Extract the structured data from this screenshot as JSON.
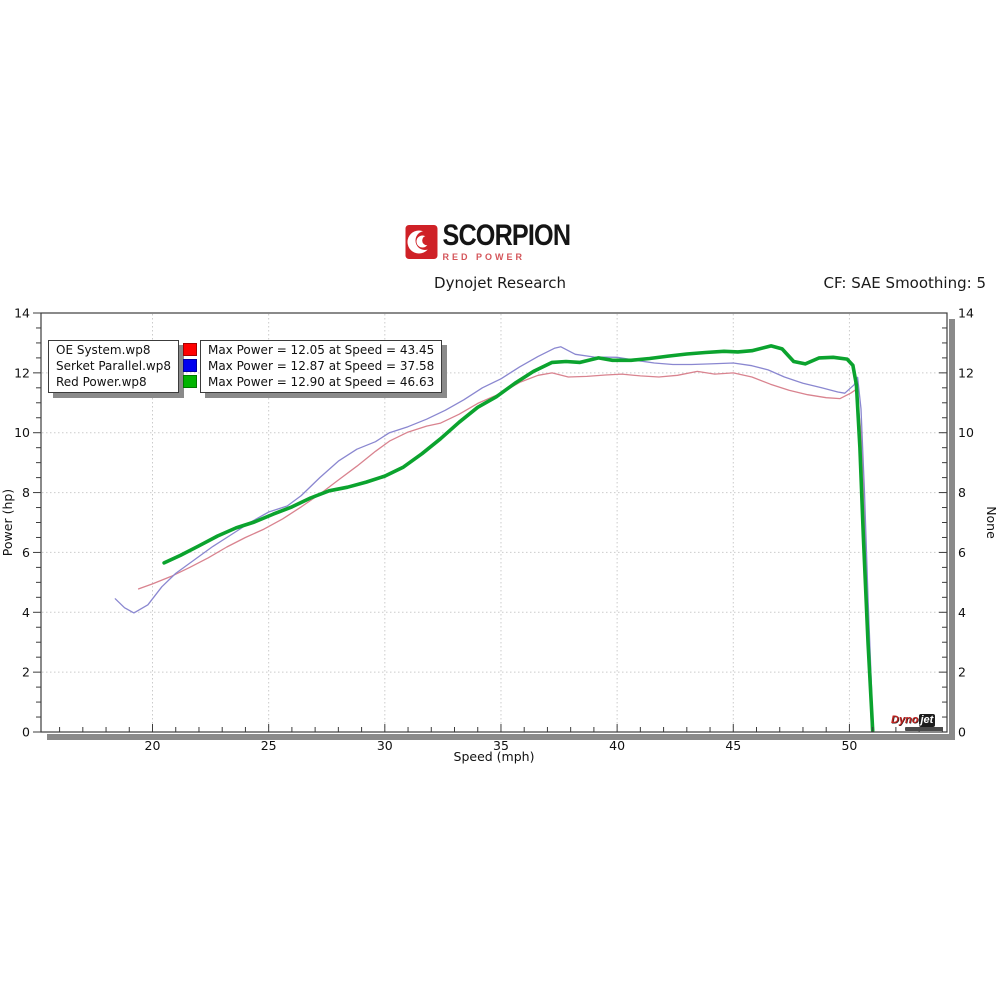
{
  "header": {
    "brand": {
      "name": "SCORPION",
      "tagline": "RED POWER",
      "brand_color": "#cf2127"
    },
    "subtitle": "Dynojet Research",
    "cf_label": "CF: SAE Smoothing: 5"
  },
  "watermark": {
    "part1": "Dyno",
    "part2": "jet"
  },
  "chart_data": {
    "type": "line",
    "title": "",
    "xlabel": "Speed (mph)",
    "ylabel_left": "Power (hp)",
    "ylabel_right": "None",
    "xlim": [
      15.2,
      54.2
    ],
    "ylim": [
      0,
      14
    ],
    "x_ticks_major": [
      20,
      25,
      30,
      35,
      40,
      45,
      50
    ],
    "x_minor_step": 1,
    "y_ticks_major": [
      0,
      2,
      4,
      6,
      8,
      10,
      12,
      14
    ],
    "y_minor_step": 0.5,
    "grid": "dotted",
    "legend_position": "top-left",
    "colors": {
      "grid": "#cbcbcb",
      "border": "#3c3c3c",
      "shadow": "#8a8a8a",
      "tick": "#3c3c3c",
      "label": "#111111"
    },
    "series": [
      {
        "name": "OE System.wp8",
        "swatch_color": "#ff0000",
        "line_color": "#d9838f",
        "line_width": 1.3,
        "max_label": "Max Power = 12.05 at Speed = 43.45",
        "max_power": 12.05,
        "max_speed": 43.45,
        "points": [
          [
            19.4,
            4.78
          ],
          [
            20.0,
            4.95
          ],
          [
            20.8,
            5.2
          ],
          [
            21.6,
            5.5
          ],
          [
            22.4,
            5.82
          ],
          [
            23.2,
            6.18
          ],
          [
            24.0,
            6.5
          ],
          [
            24.8,
            6.78
          ],
          [
            25.6,
            7.12
          ],
          [
            26.4,
            7.52
          ],
          [
            27.2,
            7.95
          ],
          [
            28.0,
            8.42
          ],
          [
            28.8,
            8.88
          ],
          [
            29.6,
            9.38
          ],
          [
            30.2,
            9.72
          ],
          [
            31.0,
            10.02
          ],
          [
            31.8,
            10.22
          ],
          [
            32.4,
            10.32
          ],
          [
            33.2,
            10.62
          ],
          [
            34.0,
            10.98
          ],
          [
            35.0,
            11.32
          ],
          [
            35.8,
            11.68
          ],
          [
            36.6,
            11.92
          ],
          [
            37.2,
            12.0
          ],
          [
            37.9,
            11.86
          ],
          [
            38.7,
            11.88
          ],
          [
            39.5,
            11.93
          ],
          [
            40.2,
            11.96
          ],
          [
            41.0,
            11.9
          ],
          [
            41.8,
            11.86
          ],
          [
            42.6,
            11.92
          ],
          [
            43.45,
            12.05
          ],
          [
            44.2,
            11.96
          ],
          [
            45.0,
            12.0
          ],
          [
            45.8,
            11.86
          ],
          [
            46.6,
            11.62
          ],
          [
            47.4,
            11.42
          ],
          [
            48.2,
            11.27
          ],
          [
            49.0,
            11.17
          ],
          [
            49.6,
            11.14
          ],
          [
            50.05,
            11.32
          ],
          [
            50.3,
            11.45
          ],
          [
            50.5,
            10.0
          ],
          [
            50.7,
            6.0
          ],
          [
            50.85,
            2.2
          ],
          [
            50.95,
            0.05
          ]
        ]
      },
      {
        "name": "Serket Parallel.wp8",
        "swatch_color": "#0000ee",
        "line_color": "#8a87d0",
        "line_width": 1.3,
        "max_label": "Max Power = 12.87 at Speed = 37.58",
        "max_power": 12.87,
        "max_speed": 37.58,
        "points": [
          [
            18.4,
            4.45
          ],
          [
            18.8,
            4.15
          ],
          [
            19.2,
            3.98
          ],
          [
            19.8,
            4.25
          ],
          [
            20.4,
            4.85
          ],
          [
            21.0,
            5.3
          ],
          [
            21.8,
            5.75
          ],
          [
            22.6,
            6.2
          ],
          [
            23.4,
            6.6
          ],
          [
            24.2,
            7.0
          ],
          [
            25.0,
            7.35
          ],
          [
            25.8,
            7.55
          ],
          [
            26.4,
            7.9
          ],
          [
            27.2,
            8.5
          ],
          [
            28.0,
            9.05
          ],
          [
            28.8,
            9.45
          ],
          [
            29.6,
            9.7
          ],
          [
            30.2,
            10.0
          ],
          [
            31.0,
            10.2
          ],
          [
            31.8,
            10.45
          ],
          [
            32.6,
            10.75
          ],
          [
            33.4,
            11.1
          ],
          [
            34.2,
            11.5
          ],
          [
            35.0,
            11.8
          ],
          [
            35.8,
            12.2
          ],
          [
            36.6,
            12.55
          ],
          [
            37.3,
            12.82
          ],
          [
            37.58,
            12.87
          ],
          [
            38.2,
            12.62
          ],
          [
            39.0,
            12.53
          ],
          [
            40.0,
            12.52
          ],
          [
            40.8,
            12.42
          ],
          [
            41.6,
            12.33
          ],
          [
            42.4,
            12.28
          ],
          [
            43.2,
            12.28
          ],
          [
            44.0,
            12.3
          ],
          [
            45.0,
            12.33
          ],
          [
            45.8,
            12.24
          ],
          [
            46.5,
            12.1
          ],
          [
            47.2,
            11.86
          ],
          [
            48.0,
            11.65
          ],
          [
            48.8,
            11.5
          ],
          [
            49.5,
            11.36
          ],
          [
            49.8,
            11.32
          ],
          [
            50.2,
            11.6
          ],
          [
            50.35,
            11.85
          ],
          [
            50.5,
            10.8
          ],
          [
            50.65,
            8.0
          ],
          [
            50.8,
            4.5
          ],
          [
            50.95,
            1.5
          ],
          [
            51.0,
            0.05
          ]
        ]
      },
      {
        "name": "Red Power.wp8",
        "swatch_color": "#00b400",
        "line_color": "#0ba32e",
        "line_width": 3.6,
        "max_label": "Max Power = 12.90 at Speed = 46.63",
        "max_power": 12.9,
        "max_speed": 46.63,
        "points": [
          [
            20.5,
            5.65
          ],
          [
            21.2,
            5.9
          ],
          [
            22.0,
            6.22
          ],
          [
            22.8,
            6.55
          ],
          [
            23.6,
            6.82
          ],
          [
            24.4,
            7.02
          ],
          [
            25.2,
            7.28
          ],
          [
            26.0,
            7.52
          ],
          [
            26.8,
            7.82
          ],
          [
            27.6,
            8.06
          ],
          [
            28.4,
            8.18
          ],
          [
            29.2,
            8.35
          ],
          [
            30.0,
            8.55
          ],
          [
            30.8,
            8.85
          ],
          [
            31.6,
            9.3
          ],
          [
            32.4,
            9.8
          ],
          [
            33.2,
            10.35
          ],
          [
            34.0,
            10.85
          ],
          [
            34.8,
            11.2
          ],
          [
            35.6,
            11.65
          ],
          [
            36.4,
            12.05
          ],
          [
            37.2,
            12.35
          ],
          [
            37.8,
            12.38
          ],
          [
            38.4,
            12.35
          ],
          [
            39.2,
            12.5
          ],
          [
            39.8,
            12.42
          ],
          [
            40.6,
            12.42
          ],
          [
            41.4,
            12.48
          ],
          [
            42.2,
            12.56
          ],
          [
            43.0,
            12.63
          ],
          [
            43.8,
            12.68
          ],
          [
            44.6,
            12.72
          ],
          [
            45.2,
            12.7
          ],
          [
            45.8,
            12.74
          ],
          [
            46.63,
            12.9
          ],
          [
            47.1,
            12.8
          ],
          [
            47.6,
            12.38
          ],
          [
            48.1,
            12.3
          ],
          [
            48.7,
            12.5
          ],
          [
            49.3,
            12.52
          ],
          [
            49.9,
            12.46
          ],
          [
            50.15,
            12.25
          ],
          [
            50.3,
            11.6
          ],
          [
            50.45,
            9.5
          ],
          [
            50.6,
            6.5
          ],
          [
            50.8,
            3.0
          ],
          [
            51.0,
            0.05
          ]
        ]
      }
    ]
  }
}
